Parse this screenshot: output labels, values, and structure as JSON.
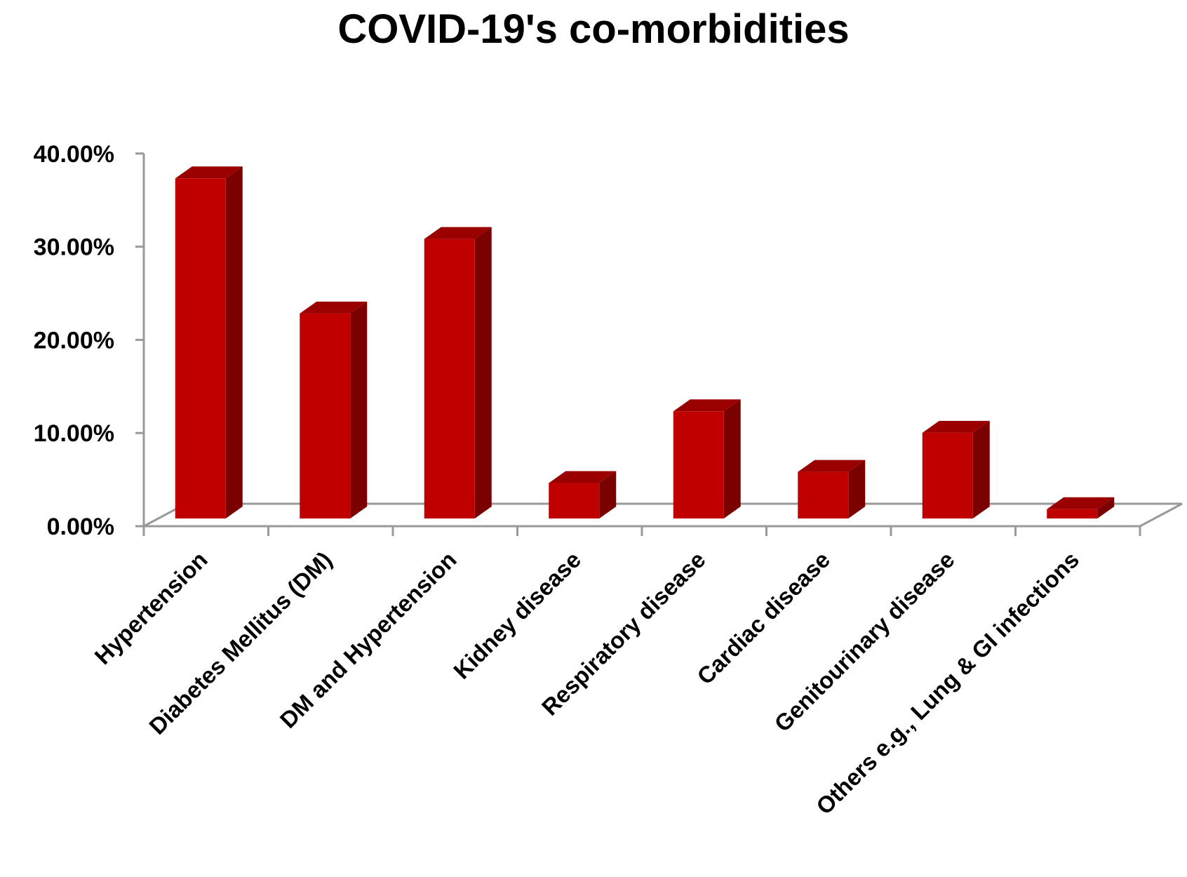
{
  "chart_data": {
    "type": "bar",
    "style": "3d-column",
    "title": "COVID-19's co-morbidities",
    "xlabel": "",
    "ylabel": "",
    "categories": [
      "Hypertension",
      "Diabetes Mellitus (DM)",
      "DM and Hypertension",
      "Kidney disease",
      "Respiratory disease",
      "Cardiac disease",
      "Genitourinary disease",
      "Others e.g., Lung & GI infections"
    ],
    "values": [
      36.5,
      22.0,
      30.0,
      3.8,
      11.5,
      5.0,
      9.2,
      1.0
    ],
    "ylim": [
      0,
      40
    ],
    "yticks": [
      0,
      10,
      20,
      30,
      40
    ],
    "ytick_labels": [
      "0.00%",
      "10.00%",
      "20.00%",
      "30.00%",
      "40.00%"
    ],
    "grid": false,
    "legend": "none",
    "colors": {
      "bar_front": "#c00000",
      "bar_side": "#7b0000",
      "bar_top": "#9a0000",
      "axis": "#999999"
    }
  }
}
